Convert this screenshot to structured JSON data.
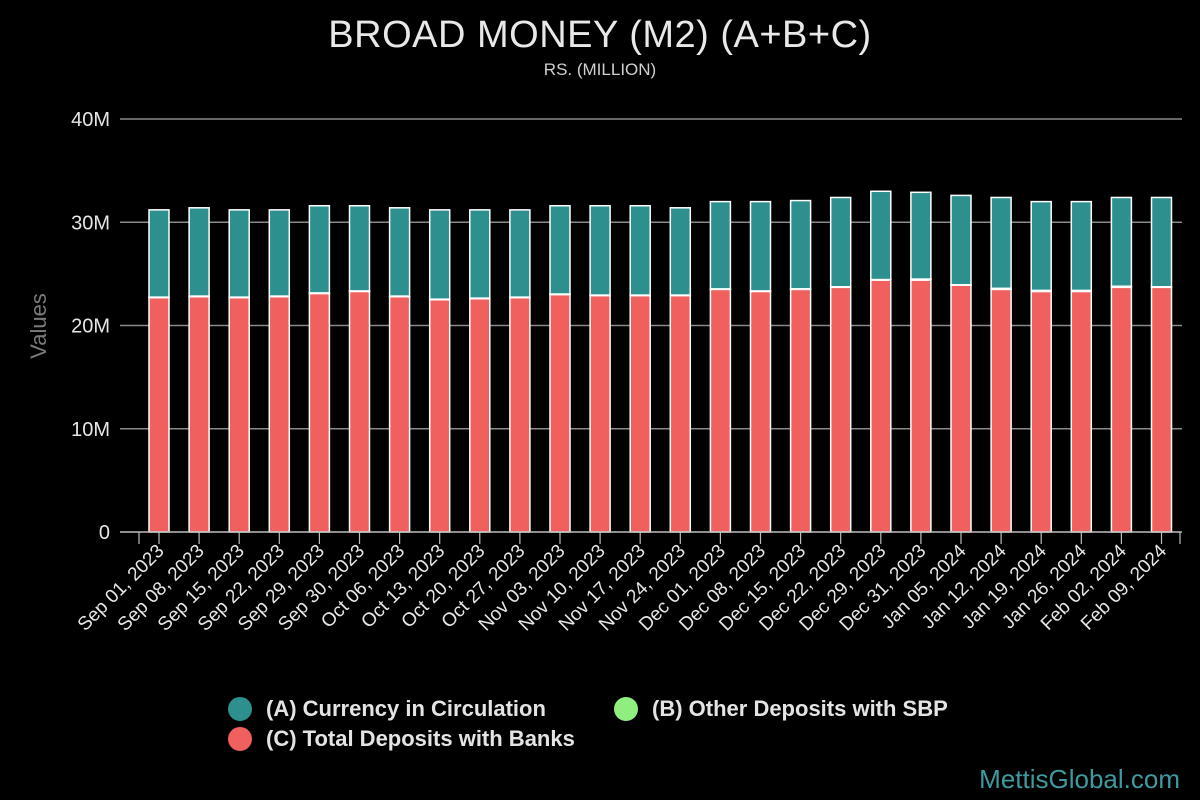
{
  "title": "BROAD MONEY (M2) (A+B+C)",
  "subtitle": "RS. (MILLION)",
  "watermark": "MettisGlobal.com",
  "colors": {
    "background": "#000000",
    "currency": "#2e8f8f",
    "other_deposits": "#90ee80",
    "bank_deposits": "#f0605f",
    "grid": "#8a8a8a"
  },
  "legend": [
    {
      "label": "(A) Currency in Circulation",
      "color": "#2e8f8f"
    },
    {
      "label": "(B) Other Deposits with SBP",
      "color": "#90ee80"
    },
    {
      "label": "(C) Total Deposits with Banks",
      "color": "#f0605f"
    }
  ],
  "chart_data": {
    "type": "bar",
    "stacked": true,
    "title": "BROAD MONEY (M2) (A+B+C)",
    "subtitle": "RS. (MILLION)",
    "ylabel": "Values",
    "xlabel": "",
    "ylim": [
      0,
      40000000
    ],
    "yticks": [
      0,
      10000000,
      20000000,
      30000000,
      40000000
    ],
    "ytick_labels": [
      "0",
      "10M",
      "20M",
      "30M",
      "40M"
    ],
    "grid": true,
    "legend_position": "bottom",
    "categories": [
      "Sep 01, 2023",
      "Sep 08, 2023",
      "Sep 15, 2023",
      "Sep 22, 2023",
      "Sep 29, 2023",
      "Sep 30, 2023",
      "Oct 06, 2023",
      "Oct 13, 2023",
      "Oct 20, 2023",
      "Oct 27, 2023",
      "Nov 03, 2023",
      "Nov 10, 2023",
      "Nov 17, 2023",
      "Nov 24, 2023",
      "Dec 01, 2023",
      "Dec 08, 2023",
      "Dec 15, 2023",
      "Dec 22, 2023",
      "Dec 29, 2023",
      "Dec 31, 2023",
      "Jan 05, 2024",
      "Jan 12, 2024",
      "Jan 19, 2024",
      "Jan 26, 2024",
      "Feb 02, 2024",
      "Feb 09, 2024"
    ],
    "series": [
      {
        "name": "(C) Total Deposits with Banks",
        "color": "#f0605f",
        "values": [
          22700000,
          22800000,
          22700000,
          22800000,
          23100000,
          23300000,
          22800000,
          22500000,
          22600000,
          22700000,
          23000000,
          22900000,
          22900000,
          22900000,
          23500000,
          23300000,
          23500000,
          23700000,
          24400000,
          24400000,
          23900000,
          23500000,
          23300000,
          23300000,
          23700000,
          23700000
        ]
      },
      {
        "name": "(B) Other Deposits with SBP",
        "color": "#90ee80",
        "values": [
          50000,
          50000,
          50000,
          50000,
          60000,
          50000,
          50000,
          50000,
          50000,
          50000,
          50000,
          50000,
          50000,
          50000,
          50000,
          50000,
          60000,
          50000,
          50000,
          100000,
          50000,
          100000,
          100000,
          100000,
          100000,
          50000
        ]
      },
      {
        "name": "(A) Currency in Circulation",
        "color": "#2e8f8f",
        "values": [
          8450000,
          8550000,
          8450000,
          8350000,
          8440000,
          8250000,
          8550000,
          8650000,
          8550000,
          8450000,
          8550000,
          8650000,
          8650000,
          8450000,
          8450000,
          8650000,
          8540000,
          8650000,
          8550000,
          8400000,
          8650000,
          8800000,
          8600000,
          8600000,
          8600000,
          8650000
        ]
      }
    ]
  }
}
